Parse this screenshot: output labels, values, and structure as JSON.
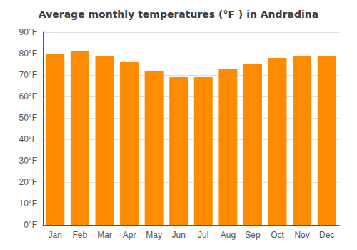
{
  "chart_data": {
    "type": "bar",
    "title": "Average monthly temperatures (°F ) in Andradina",
    "categories": [
      "Jan",
      "Feb",
      "Mar",
      "Apr",
      "May",
      "Jun",
      "Jul",
      "Aug",
      "Sep",
      "Oct",
      "Nov",
      "Dec"
    ],
    "values": [
      80,
      81,
      79,
      76,
      72,
      69,
      69,
      73,
      75,
      78,
      79,
      79
    ],
    "color": "#FF8C00",
    "ylim": [
      0,
      90
    ],
    "yticks": [
      {
        "value": 0,
        "label": "0°F"
      },
      {
        "value": 10,
        "label": "10°F"
      },
      {
        "value": 20,
        "label": "20°F"
      },
      {
        "value": 30,
        "label": "30°F"
      },
      {
        "value": 40,
        "label": "40°F"
      },
      {
        "value": 50,
        "label": "50°F"
      },
      {
        "value": 60,
        "label": "60°F"
      },
      {
        "value": 70,
        "label": "70°F"
      },
      {
        "value": 80,
        "label": "80°F"
      },
      {
        "value": 90,
        "label": "90°F"
      }
    ],
    "grid": true
  }
}
